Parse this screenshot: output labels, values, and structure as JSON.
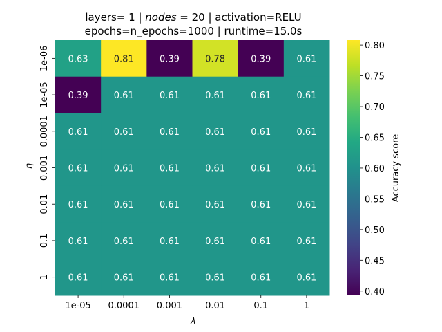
{
  "chart_data": {
    "type": "heatmap",
    "title_line1": "layers= 1 | ",
    "title_nodes_label": "nodes",
    "title_line1_rest": " = 20 | activation=RELU",
    "title_line2": "epochs=n_epochs=1000 | runtime=15.0s",
    "xlabel": "λ",
    "ylabel": "η",
    "x_categories": [
      "1e-05",
      "0.0001",
      "0.001",
      "0.01",
      "0.1",
      "1"
    ],
    "y_categories": [
      "1e-06",
      "1e-05",
      "0.0001",
      "0.001",
      "0.01",
      "0.1",
      "1"
    ],
    "values": [
      [
        0.63,
        0.81,
        0.39,
        0.78,
        0.39,
        0.61
      ],
      [
        0.39,
        0.61,
        0.61,
        0.61,
        0.61,
        0.61
      ],
      [
        0.61,
        0.61,
        0.61,
        0.61,
        0.61,
        0.61
      ],
      [
        0.61,
        0.61,
        0.61,
        0.61,
        0.61,
        0.61
      ],
      [
        0.61,
        0.61,
        0.61,
        0.61,
        0.61,
        0.61
      ],
      [
        0.61,
        0.61,
        0.61,
        0.61,
        0.61,
        0.61
      ],
      [
        0.61,
        0.61,
        0.61,
        0.61,
        0.61,
        0.61
      ]
    ],
    "colorbar": {
      "label": "Accuracy score",
      "vmin": 0.393,
      "vmax": 0.808,
      "ticks": [
        "0.40",
        "0.45",
        "0.50",
        "0.55",
        "0.60",
        "0.65",
        "0.70",
        "0.75",
        "0.80"
      ],
      "colormap": "viridis"
    }
  }
}
